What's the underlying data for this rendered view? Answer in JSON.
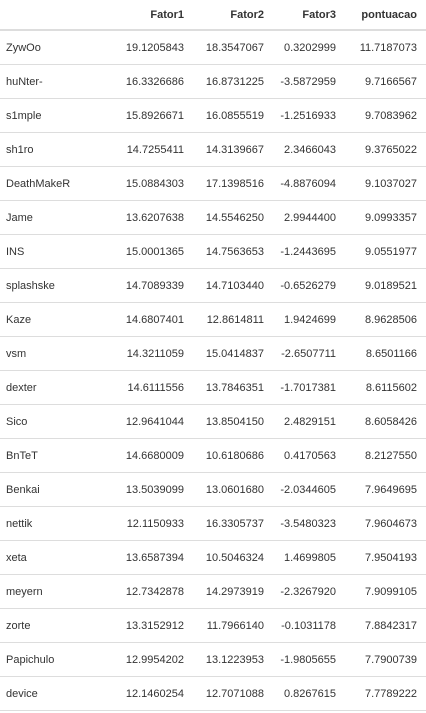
{
  "table": {
    "headers": [
      "",
      "Fator1",
      "Fator2",
      "Fator3",
      "pontuacao"
    ],
    "rows": [
      [
        "ZywOo",
        "19.1205843",
        "18.3547067",
        "0.3202999",
        "11.7187073"
      ],
      [
        "huNter-",
        "16.3326686",
        "16.8731225",
        "-3.5872959",
        "9.7166567"
      ],
      [
        "s1mple",
        "15.8926671",
        "16.0855519",
        "-1.2516933",
        "9.7083962"
      ],
      [
        "sh1ro",
        "14.7255411",
        "14.3139667",
        "2.3466043",
        "9.3765022"
      ],
      [
        "DeathMakeR",
        "15.0884303",
        "17.1398516",
        "-4.8876094",
        "9.1037027"
      ],
      [
        "Jame",
        "13.6207638",
        "14.5546250",
        "2.9944400",
        "9.0993357"
      ],
      [
        "INS",
        "15.0001365",
        "14.7563653",
        "-1.2443695",
        "9.0551977"
      ],
      [
        "splashske",
        "14.7089339",
        "14.7103440",
        "-0.6526279",
        "9.0189521"
      ],
      [
        "Kaze",
        "14.6807401",
        "12.8614811",
        "1.9424699",
        "8.9628506"
      ],
      [
        "vsm",
        "14.3211059",
        "15.0414837",
        "-2.6507711",
        "8.6501166"
      ],
      [
        "dexter",
        "14.6111556",
        "13.7846351",
        "-1.7017381",
        "8.6115602"
      ],
      [
        "Sico",
        "12.9641044",
        "13.8504150",
        "2.4829151",
        "8.6058426"
      ],
      [
        "BnTeT",
        "14.6680009",
        "10.6180686",
        "0.4170563",
        "8.2127550"
      ],
      [
        "Benkai",
        "13.5039099",
        "13.0601680",
        "-2.0344605",
        "7.9649695"
      ],
      [
        "nettik",
        "12.1150933",
        "16.3305737",
        "-3.5480323",
        "7.9604673"
      ],
      [
        "xeta",
        "13.6587394",
        "10.5046324",
        "1.4699805",
        "7.9504193"
      ],
      [
        "meyern",
        "12.7342878",
        "14.2973919",
        "-2.3267920",
        "7.9099105"
      ],
      [
        "zorte",
        "13.3152912",
        "11.7966140",
        "-0.1031178",
        "7.8842317"
      ],
      [
        "Papichulo",
        "12.9954202",
        "13.1223953",
        "-1.9805655",
        "7.7900739"
      ],
      [
        "device",
        "12.1460254",
        "12.7071088",
        "0.8267615",
        "7.7789222"
      ]
    ]
  }
}
